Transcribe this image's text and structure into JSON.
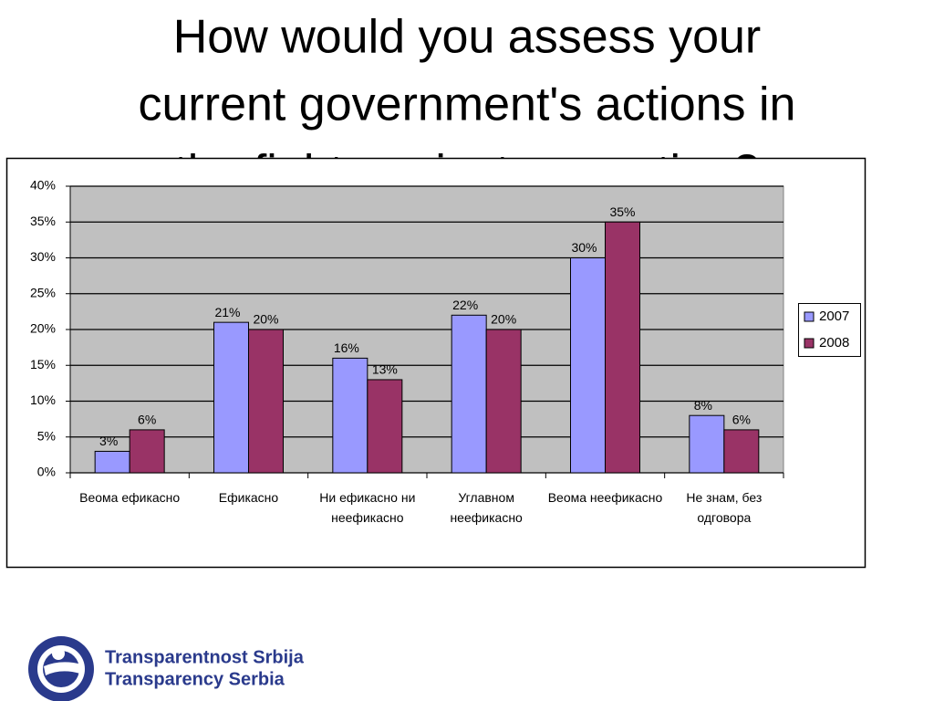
{
  "chart_data": {
    "type": "bar",
    "title_lines": [
      "How would you assess your",
      "current government's actions in",
      "the fight against corruption?"
    ],
    "categories": [
      "Веома ефикасно",
      "Ефикасно",
      "Ни ефикасно ни неефикасно",
      "Углавном неефикасно",
      "Веома неефикасно",
      "Не знам, без одговора"
    ],
    "series": [
      {
        "name": "2007",
        "color": "#9999ff",
        "values": [
          3,
          21,
          16,
          22,
          30,
          8
        ],
        "value_labels": [
          "3%",
          "21%",
          "16%",
          "22%",
          "30%",
          "8%"
        ]
      },
      {
        "name": "2008",
        "color": "#993366",
        "values": [
          6,
          20,
          13,
          20,
          35,
          6
        ],
        "value_labels": [
          "6%",
          "20%",
          "13%",
          "20%",
          "35%",
          "6%"
        ]
      }
    ],
    "ylim": [
      0,
      40
    ],
    "yticks": [
      {
        "value": 0,
        "label": "0%"
      },
      {
        "value": 5,
        "label": "5%"
      },
      {
        "value": 10,
        "label": "10%"
      },
      {
        "value": 15,
        "label": "15%"
      },
      {
        "value": 20,
        "label": "20%"
      },
      {
        "value": 25,
        "label": "25%"
      },
      {
        "value": 30,
        "label": "30%"
      },
      {
        "value": 35,
        "label": "35%"
      },
      {
        "value": 40,
        "label": "40%"
      }
    ],
    "grid": true,
    "legend": "right"
  },
  "logo": {
    "lines": [
      "Transparentnost Srbija",
      "Transparency Serbia"
    ]
  }
}
